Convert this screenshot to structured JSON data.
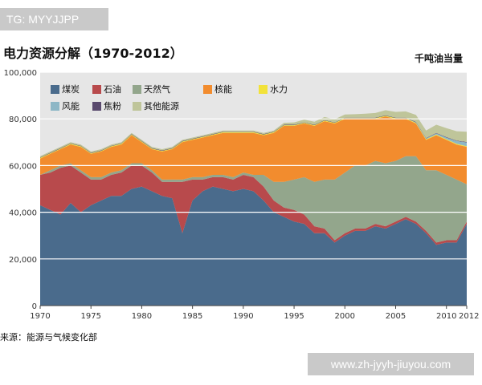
{
  "watermark_top": "TG: MYYJJPP",
  "watermark_bottom": "www.zh-jyyh-jiuyou.com",
  "chart_data": {
    "type": "area",
    "stacked": true,
    "title": "电力资源分解（1970-2012）",
    "unit": "千吨油当量",
    "source": "来源：能源与气候变化部",
    "grid": true,
    "legend_position": "top-left",
    "x": [
      1970,
      1971,
      1972,
      1973,
      1974,
      1975,
      1976,
      1977,
      1978,
      1979,
      1980,
      1981,
      1982,
      1983,
      1984,
      1985,
      1986,
      1987,
      1988,
      1989,
      1990,
      1991,
      1992,
      1993,
      1994,
      1995,
      1996,
      1997,
      1998,
      1999,
      2000,
      2001,
      2002,
      2003,
      2004,
      2005,
      2006,
      2007,
      2008,
      2009,
      2010,
      2011,
      2012
    ],
    "xticks": [
      "1970",
      "1975",
      "1980",
      "1985",
      "1990",
      "1995",
      "2000",
      "2005",
      "2010",
      "2012"
    ],
    "ylim": [
      0,
      100000
    ],
    "yticks": [
      "0",
      "20,000",
      "40,000",
      "60,000",
      "80,000",
      "100,000"
    ],
    "series": [
      {
        "name": "煤炭",
        "color": "#4a6b8c",
        "values": [
          43000,
          41000,
          39000,
          44000,
          40000,
          43000,
          45000,
          47000,
          47000,
          50000,
          51000,
          49000,
          47000,
          46000,
          31000,
          45000,
          49000,
          51000,
          50000,
          49000,
          50000,
          49000,
          45000,
          40000,
          38000,
          36000,
          35000,
          31000,
          31000,
          27000,
          30000,
          32000,
          32000,
          34000,
          33000,
          35000,
          37000,
          35000,
          31000,
          26000,
          27000,
          27000,
          35000
        ]
      },
      {
        "name": "石油",
        "color": "#b84a4c",
        "values": [
          13000,
          16000,
          20000,
          16000,
          17000,
          11000,
          9000,
          9000,
          10000,
          10000,
          9000,
          8000,
          6000,
          7000,
          22000,
          9000,
          5000,
          4000,
          5000,
          5000,
          6000,
          6000,
          6000,
          5000,
          4000,
          5000,
          4000,
          3000,
          2000,
          1000,
          1000,
          1000,
          1000,
          1000,
          1000,
          1000,
          1000,
          1000,
          1000,
          1000,
          1000,
          1000,
          1000
        ]
      },
      {
        "name": "天然气",
        "color": "#93a68c",
        "values": [
          0,
          1000,
          1000,
          1000,
          1000,
          1000,
          1000,
          1000,
          1000,
          1000,
          1000,
          1000,
          1000,
          1000,
          1000,
          1000,
          1000,
          1000,
          1000,
          1000,
          1000,
          1000,
          5000,
          8000,
          11000,
          13000,
          16000,
          19000,
          21000,
          26000,
          26000,
          27000,
          27000,
          27000,
          27000,
          26000,
          26000,
          28000,
          26000,
          31000,
          28000,
          26000,
          16000
        ]
      },
      {
        "name": "核能",
        "color": "#f28c2e",
        "values": [
          7000,
          7000,
          7000,
          8000,
          10000,
          10000,
          11000,
          11000,
          11000,
          12000,
          9000,
          9000,
          12000,
          13000,
          16000,
          16000,
          17000,
          17000,
          18000,
          19000,
          17000,
          18000,
          17000,
          21000,
          24000,
          23000,
          23000,
          24000,
          25000,
          24000,
          23000,
          20000,
          20000,
          18000,
          20000,
          18000,
          16000,
          14000,
          13000,
          15000,
          15000,
          15000,
          16000
        ]
      },
      {
        "name": "水力",
        "color": "#f2e23a",
        "values": [
          300,
          300,
          300,
          300,
          300,
          300,
          300,
          300,
          300,
          300,
          300,
          300,
          300,
          300,
          300,
          300,
          300,
          300,
          300,
          300,
          300,
          300,
          300,
          300,
          300,
          300,
          300,
          300,
          300,
          300,
          300,
          300,
          300,
          300,
          300,
          300,
          300,
          300,
          300,
          300,
          300,
          300,
          300
        ]
      },
      {
        "name": "风能",
        "color": "#8db7c6",
        "values": [
          0,
          0,
          0,
          0,
          0,
          0,
          0,
          0,
          0,
          0,
          0,
          0,
          0,
          0,
          0,
          0,
          0,
          0,
          0,
          0,
          0,
          0,
          0,
          0,
          0,
          0,
          0,
          0,
          0,
          0,
          0,
          0,
          0,
          0,
          0,
          0,
          0,
          200,
          300,
          500,
          700,
          1200,
          1600
        ]
      },
      {
        "name": "焦粉",
        "color": "#5a4a6e",
        "values": [
          200,
          200,
          200,
          200,
          200,
          200,
          200,
          200,
          200,
          200,
          200,
          200,
          200,
          200,
          200,
          200,
          200,
          200,
          200,
          200,
          200,
          200,
          200,
          200,
          200,
          200,
          200,
          200,
          200,
          200,
          200,
          200,
          200,
          200,
          200,
          200,
          200,
          200,
          200,
          200,
          200,
          200,
          200
        ]
      },
      {
        "name": "其他能源",
        "color": "#bfc59a",
        "values": [
          500,
          500,
          500,
          500,
          500,
          500,
          500,
          500,
          500,
          500,
          500,
          500,
          500,
          500,
          500,
          500,
          500,
          500,
          500,
          500,
          500,
          500,
          500,
          500,
          800,
          1000,
          1200,
          1300,
          1300,
          1300,
          1400,
          1500,
          1700,
          2000,
          2200,
          2500,
          2700,
          3000,
          3200,
          3500,
          3800,
          4000,
          4400
        ]
      }
    ]
  }
}
